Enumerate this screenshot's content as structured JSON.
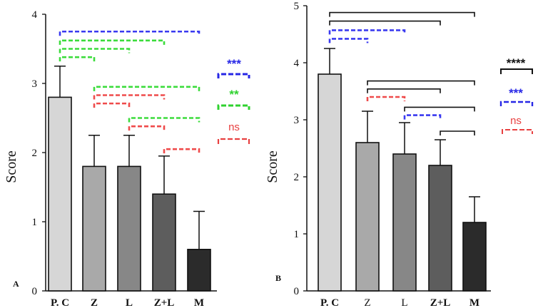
{
  "chart_data": [
    {
      "panel_label": "A",
      "type": "bar",
      "ylabel": "Score",
      "ylim": [
        0,
        4
      ],
      "yticks": [
        "0",
        "1",
        "2",
        "3",
        "4"
      ],
      "categories": [
        "P. C",
        "Z",
        "L",
        "Z+L",
        "M"
      ],
      "values": [
        2.8,
        1.8,
        1.8,
        1.4,
        0.6
      ],
      "errors": [
        0.45,
        0.45,
        0.45,
        0.55,
        0.55
      ],
      "bar_colors": [
        "#d6d6d6",
        "#a9a9a9",
        "#878787",
        "#5d5d5d",
        "#2b2b2b"
      ],
      "brackets": [
        {
          "from": 0,
          "to": 4,
          "level": 3.75,
          "color": "#3a3af0",
          "dashed": true
        },
        {
          "from": 0,
          "to": 3,
          "level": 3.62,
          "color": "#3cdc3c",
          "dashed": true
        },
        {
          "from": 0,
          "to": 2,
          "level": 3.5,
          "color": "#3cdc3c",
          "dashed": true
        },
        {
          "from": 0,
          "to": 1,
          "level": 3.38,
          "color": "#3cdc3c",
          "dashed": true
        },
        {
          "from": 1,
          "to": 4,
          "level": 2.95,
          "color": "#3cdc3c",
          "dashed": true
        },
        {
          "from": 1,
          "to": 3,
          "level": 2.83,
          "color": "#ef4b4b",
          "dashed": true
        },
        {
          "from": 1,
          "to": 2,
          "level": 2.71,
          "color": "#ef4b4b",
          "dashed": true
        },
        {
          "from": 2,
          "to": 4,
          "level": 2.5,
          "color": "#3cdc3c",
          "dashed": true
        },
        {
          "from": 2,
          "to": 3,
          "level": 2.38,
          "color": "#ef4b4b",
          "dashed": true
        },
        {
          "from": 3,
          "to": 4,
          "level": 2.05,
          "color": "#ef4b4b",
          "dashed": true
        }
      ],
      "legend": [
        {
          "label": "***",
          "color": "#2727e6",
          "dashed": true
        },
        {
          "label": "**",
          "color": "#2fd22f",
          "dashed": true
        },
        {
          "label": "ns",
          "color": "#e84040",
          "dashed": true
        }
      ]
    },
    {
      "panel_label": "B",
      "type": "bar",
      "ylabel": "Score",
      "ylim": [
        0,
        5
      ],
      "yticks": [
        "0",
        "1",
        "2",
        "3",
        "4",
        "5"
      ],
      "categories": [
        "P. C",
        "Z",
        "L",
        "Z+L",
        "M"
      ],
      "values": [
        3.8,
        2.6,
        2.4,
        2.2,
        1.2
      ],
      "errors": [
        0.45,
        0.55,
        0.55,
        0.45,
        0.45
      ],
      "bar_colors": [
        "#d6d6d6",
        "#a9a9a9",
        "#878787",
        "#5d5d5d",
        "#2b2b2b"
      ],
      "brackets": [
        {
          "from": 0,
          "to": 4,
          "level": 4.88,
          "color": "#111111",
          "dashed": false
        },
        {
          "from": 0,
          "to": 3,
          "level": 4.73,
          "color": "#111111",
          "dashed": false
        },
        {
          "from": 0,
          "to": 2,
          "level": 4.57,
          "color": "#3a3af0",
          "dashed": true
        },
        {
          "from": 0,
          "to": 1,
          "level": 4.42,
          "color": "#3a3af0",
          "dashed": true
        },
        {
          "from": 1,
          "to": 4,
          "level": 3.68,
          "color": "#111111",
          "dashed": false
        },
        {
          "from": 1,
          "to": 3,
          "level": 3.54,
          "color": "#111111",
          "dashed": false
        },
        {
          "from": 1,
          "to": 2,
          "level": 3.4,
          "color": "#ef4b4b",
          "dashed": true
        },
        {
          "from": 2,
          "to": 4,
          "level": 3.22,
          "color": "#111111",
          "dashed": false
        },
        {
          "from": 2,
          "to": 3,
          "level": 3.08,
          "color": "#3a3af0",
          "dashed": true
        },
        {
          "from": 3,
          "to": 4,
          "level": 2.8,
          "color": "#111111",
          "dashed": false
        }
      ],
      "legend": [
        {
          "label": "****",
          "color": "#111111",
          "dashed": false
        },
        {
          "label": "***",
          "color": "#2727e6",
          "dashed": true
        },
        {
          "label": "ns",
          "color": "#e84040",
          "dashed": true
        }
      ]
    }
  ]
}
